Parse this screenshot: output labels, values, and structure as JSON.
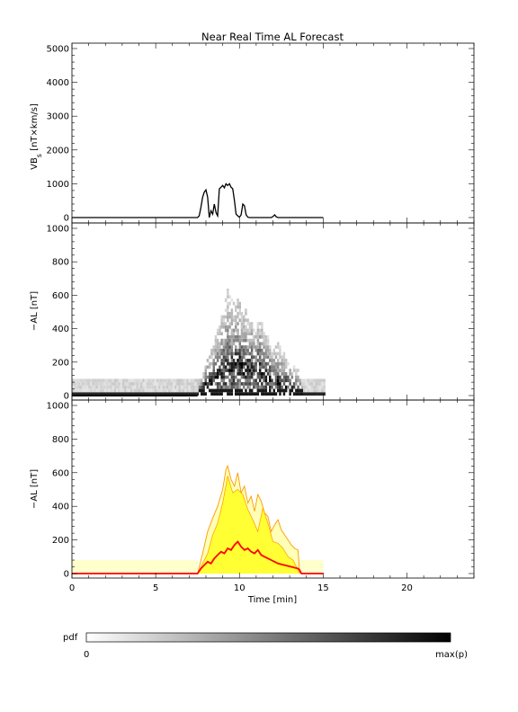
{
  "chart_data": [
    {
      "type": "line",
      "title": "Near Real Time AL Forecast",
      "ylabel": "VB",
      "ylabel_sub": "s",
      "ylabel_unit": " [nT×km/s]",
      "xlim": [
        0,
        24
      ],
      "ylim": [
        0,
        5000
      ],
      "y_ticks": [
        0,
        1000,
        2000,
        3000,
        4000,
        5000
      ],
      "series": [
        {
          "x": [
            0,
            7.5,
            7.6,
            7.7,
            7.8,
            7.9,
            8.0,
            8.1,
            8.2,
            8.3,
            8.4,
            8.5,
            8.6,
            8.7,
            8.8,
            8.9,
            9.0,
            9.1,
            9.2,
            9.3,
            9.4,
            9.5,
            9.6,
            9.7,
            9.8,
            9.9,
            10.0,
            10.1,
            10.2,
            10.3,
            10.4,
            10.5,
            10.6,
            10.7,
            10.8,
            11.0,
            11.5,
            11.9,
            12.0,
            12.1,
            12.2,
            12.3,
            12.5,
            13.0,
            13.8,
            15.0
          ],
          "values": [
            0,
            0,
            50,
            300,
            600,
            750,
            820,
            600,
            0,
            200,
            100,
            400,
            150,
            50,
            850,
            900,
            950,
            880,
            1000,
            950,
            1000,
            900,
            850,
            500,
            100,
            50,
            10,
            80,
            400,
            350,
            80,
            10,
            0,
            0,
            0,
            0,
            0,
            0,
            30,
            80,
            20,
            0,
            0,
            0,
            0,
            0
          ]
        }
      ]
    },
    {
      "type": "heatmap",
      "ylabel": "−AL [nT]",
      "xlim": [
        0,
        24
      ],
      "ylim": [
        0,
        1000
      ],
      "y_ticks": [
        0,
        200,
        400,
        600,
        800,
        1000
      ],
      "x_range": [
        0,
        15
      ],
      "y_bin_size": 20,
      "colorbar": {
        "label": "pdf",
        "min_label": "0",
        "max_label": "max(p)",
        "colors": [
          "#ffffff",
          "#000000"
        ]
      }
    },
    {
      "type": "area",
      "ylabel": "−AL [nT]",
      "xlabel": "Time [min]",
      "xlim": [
        0,
        24
      ],
      "ylim": [
        0,
        1000
      ],
      "x_ticks": [
        0,
        5,
        10,
        15,
        20
      ],
      "y_ticks": [
        0,
        200,
        400,
        600,
        800,
        1000
      ],
      "colors": {
        "median": "#ff0000",
        "band": "#ffff33",
        "outer": "#ff9900",
        "baseline_band": "#ffffcc"
      },
      "median": {
        "x": [
          0,
          7.5,
          7.7,
          7.9,
          8.1,
          8.3,
          8.5,
          8.7,
          8.9,
          9.1,
          9.3,
          9.5,
          9.7,
          9.9,
          10.1,
          10.3,
          10.5,
          10.7,
          10.9,
          11.1,
          11.3,
          11.5,
          11.7,
          11.9,
          12.1,
          12.3,
          12.5,
          12.7,
          12.9,
          13.1,
          13.3,
          13.5,
          13.6,
          13.7,
          15.0
        ],
        "values": [
          0,
          0,
          30,
          50,
          70,
          60,
          90,
          110,
          130,
          120,
          150,
          140,
          170,
          190,
          160,
          140,
          150,
          130,
          120,
          140,
          110,
          100,
          90,
          80,
          70,
          60,
          55,
          50,
          45,
          40,
          35,
          30,
          20,
          0,
          0
        ]
      },
      "upper_band": {
        "x": [
          7.5,
          7.8,
          8.1,
          8.4,
          8.7,
          9.0,
          9.3,
          9.6,
          9.9,
          10.2,
          10.5,
          10.8,
          11.1,
          11.4,
          11.7,
          12.0,
          12.3,
          12.6,
          12.9,
          13.2,
          13.6
        ],
        "values": [
          0,
          60,
          120,
          230,
          300,
          420,
          580,
          480,
          500,
          470,
          380,
          320,
          250,
          390,
          300,
          190,
          180,
          150,
          100,
          80,
          0
        ]
      },
      "outer_band": {
        "x": [
          7.5,
          7.8,
          8.1,
          8.4,
          8.7,
          9.0,
          9.2,
          9.3,
          9.5,
          9.7,
          9.9,
          10.1,
          10.3,
          10.5,
          10.7,
          10.9,
          11.1,
          11.3,
          11.5,
          11.7,
          11.9,
          12.1,
          12.3,
          12.5,
          12.7,
          12.9,
          13.1,
          13.3,
          13.5,
          13.6
        ],
        "values": [
          0,
          120,
          250,
          330,
          400,
          500,
          620,
          640,
          560,
          520,
          600,
          480,
          520,
          420,
          460,
          370,
          470,
          430,
          360,
          340,
          250,
          290,
          320,
          260,
          230,
          200,
          170,
          150,
          140,
          0
        ]
      },
      "baseline": {
        "x_range": [
          0,
          7.5
        ],
        "upper": 80,
        "median": 0
      }
    }
  ]
}
